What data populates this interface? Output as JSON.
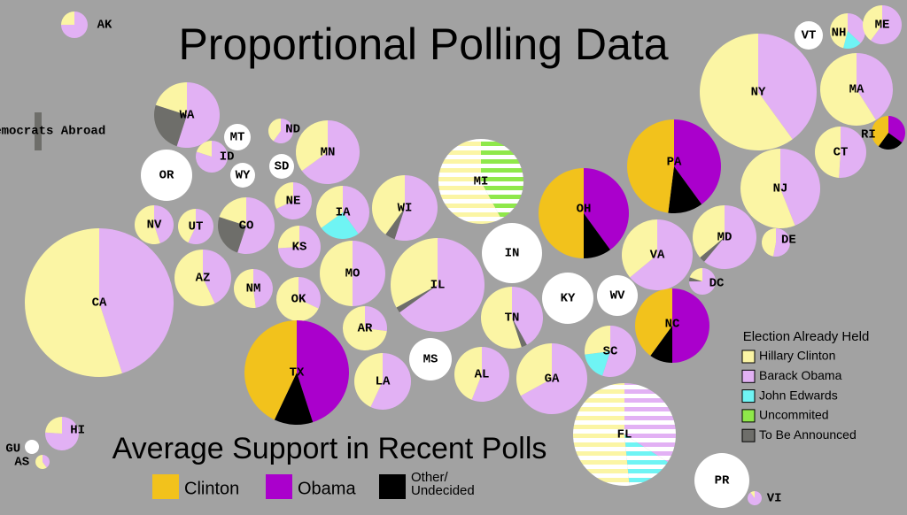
{
  "title": "Proportional Polling Data",
  "abroad_label": "Democrats Abroad",
  "held_legend": {
    "title": "Election Already Held",
    "items": [
      {
        "name": "Hillary Clinton",
        "color": "#fbf5a4"
      },
      {
        "name": "Barack Obama",
        "color": "#e2b1f4"
      },
      {
        "name": "John Edwards",
        "color": "#6ff4f4"
      },
      {
        "name": "Uncommited",
        "color": "#8fe84a"
      },
      {
        "name": "To Be Announced",
        "color": "#6e6e6a"
      }
    ]
  },
  "poll_legend": {
    "title": "Average Support in Recent Polls",
    "items": [
      {
        "name": "Clinton",
        "color": "#f2c21c"
      },
      {
        "name": "Obama",
        "color": "#aa00cc"
      },
      {
        "name": "Other/\nUndecided",
        "color": "#000000"
      }
    ]
  },
  "chart_data": {
    "type": "pie-cartogram",
    "states": [
      {
        "label": "AK",
        "segments": [
          {
            "category": "Barack Obama",
            "value": 75
          },
          {
            "category": "Hillary Clinton",
            "value": 25
          }
        ]
      },
      {
        "label": "WA",
        "segments": [
          {
            "category": "Barack Obama",
            "value": 55
          },
          {
            "category": "To Be Announced",
            "value": 25
          },
          {
            "category": "Hillary Clinton",
            "value": 20
          }
        ]
      },
      {
        "label": "MT",
        "segments": []
      },
      {
        "label": "ND",
        "segments": [
          {
            "category": "Barack Obama",
            "value": 60
          },
          {
            "category": "Hillary Clinton",
            "value": 40
          }
        ]
      },
      {
        "label": "MN",
        "segments": [
          {
            "category": "Barack Obama",
            "value": 65
          },
          {
            "category": "Hillary Clinton",
            "value": 35
          }
        ]
      },
      {
        "label": "ID",
        "segments": [
          {
            "category": "Barack Obama",
            "value": 80
          },
          {
            "category": "Hillary Clinton",
            "value": 20
          }
        ]
      },
      {
        "label": "OR",
        "segments": []
      },
      {
        "label": "WY",
        "segments": []
      },
      {
        "label": "SD",
        "segments": []
      },
      {
        "label": "NE",
        "segments": [
          {
            "category": "Barack Obama",
            "value": 68
          },
          {
            "category": "Hillary Clinton",
            "value": 32
          }
        ]
      },
      {
        "label": "IA",
        "segments": [
          {
            "category": "Barack Obama",
            "value": 40
          },
          {
            "category": "John Edwards",
            "value": 25
          },
          {
            "category": "Hillary Clinton",
            "value": 35
          }
        ]
      },
      {
        "label": "WI",
        "segments": [
          {
            "category": "Barack Obama",
            "value": 55
          },
          {
            "category": "To Be Announced",
            "value": 5
          },
          {
            "category": "Hillary Clinton",
            "value": 40
          }
        ]
      },
      {
        "label": "CO",
        "segments": [
          {
            "category": "Barack Obama",
            "value": 55
          },
          {
            "category": "To Be Announced",
            "value": 25
          },
          {
            "category": "Hillary Clinton",
            "value": 20
          }
        ]
      },
      {
        "label": "NV",
        "segments": [
          {
            "category": "Barack Obama",
            "value": 45
          },
          {
            "category": "Hillary Clinton",
            "value": 55
          }
        ]
      },
      {
        "label": "UT",
        "segments": [
          {
            "category": "Barack Obama",
            "value": 57
          },
          {
            "category": "Hillary Clinton",
            "value": 43
          }
        ]
      },
      {
        "label": "KS",
        "segments": [
          {
            "category": "Barack Obama",
            "value": 74
          },
          {
            "category": "Hillary Clinton",
            "value": 26
          }
        ]
      },
      {
        "label": "CA",
        "segments": [
          {
            "category": "Barack Obama",
            "value": 45
          },
          {
            "category": "Hillary Clinton",
            "value": 55
          }
        ]
      },
      {
        "label": "AZ",
        "segments": [
          {
            "category": "Barack Obama",
            "value": 43
          },
          {
            "category": "Hillary Clinton",
            "value": 57
          }
        ]
      },
      {
        "label": "NM",
        "segments": [
          {
            "category": "Barack Obama",
            "value": 48
          },
          {
            "category": "Hillary Clinton",
            "value": 52
          }
        ]
      },
      {
        "label": "OK",
        "segments": [
          {
            "category": "Barack Obama",
            "value": 32
          },
          {
            "category": "Hillary Clinton",
            "value": 68
          }
        ]
      },
      {
        "label": "MO",
        "segments": [
          {
            "category": "Barack Obama",
            "value": 50
          },
          {
            "category": "Hillary Clinton",
            "value": 50
          }
        ]
      },
      {
        "label": "IL",
        "segments": [
          {
            "category": "Barack Obama",
            "value": 65
          },
          {
            "category": "To Be Announced",
            "value": 2
          },
          {
            "category": "Hillary Clinton",
            "value": 33
          }
        ]
      },
      {
        "label": "AR",
        "segments": [
          {
            "category": "Barack Obama",
            "value": 27
          },
          {
            "category": "Hillary Clinton",
            "value": 73
          }
        ]
      },
      {
        "label": "TX",
        "segments": [
          {
            "category": "Obama",
            "value": 45
          },
          {
            "category": "Other/\nUndecided",
            "value": 12
          },
          {
            "category": "Clinton",
            "value": 43
          }
        ]
      },
      {
        "label": "LA",
        "segments": [
          {
            "category": "Barack Obama",
            "value": 57
          },
          {
            "category": "Hillary Clinton",
            "value": 43
          }
        ]
      },
      {
        "label": "MS",
        "segments": []
      },
      {
        "label": "AL",
        "segments": [
          {
            "category": "Barack Obama",
            "value": 56
          },
          {
            "category": "Hillary Clinton",
            "value": 44
          }
        ]
      },
      {
        "label": "TN",
        "segments": [
          {
            "category": "Barack Obama",
            "value": 42
          },
          {
            "category": "To Be Announced",
            "value": 3
          },
          {
            "category": "Hillary Clinton",
            "value": 55
          }
        ]
      },
      {
        "label": "GA",
        "segments": [
          {
            "category": "Barack Obama",
            "value": 67
          },
          {
            "category": "Hillary Clinton",
            "value": 33
          }
        ]
      },
      {
        "label": "SC",
        "segments": [
          {
            "category": "Barack Obama",
            "value": 55
          },
          {
            "category": "John Edwards",
            "value": 18
          },
          {
            "category": "Hillary Clinton",
            "value": 27
          }
        ]
      },
      {
        "label": "FL",
        "striped": true,
        "segments": [
          {
            "category": "Barack Obama",
            "value": 33
          },
          {
            "category": "John Edwards",
            "value": 14
          },
          {
            "category": "Hillary Clinton",
            "value": 50
          }
        ]
      },
      {
        "label": "IN",
        "segments": []
      },
      {
        "label": "KY",
        "segments": []
      },
      {
        "label": "WV",
        "segments": []
      },
      {
        "label": "MI",
        "striped": true,
        "segments": [
          {
            "category": "Uncommited",
            "value": 40
          },
          {
            "category": "Hillary Clinton",
            "value": 55
          }
        ]
      },
      {
        "label": "OH",
        "segments": [
          {
            "category": "Obama",
            "value": 40
          },
          {
            "category": "Other/\nUndecided",
            "value": 10
          },
          {
            "category": "Clinton",
            "value": 50
          }
        ]
      },
      {
        "label": "PA",
        "segments": [
          {
            "category": "Obama",
            "value": 40
          },
          {
            "category": "Other/\nUndecided",
            "value": 12
          },
          {
            "category": "Clinton",
            "value": 48
          }
        ]
      },
      {
        "label": "NC",
        "segments": [
          {
            "category": "Obama",
            "value": 50
          },
          {
            "category": "Other/\nUndecided",
            "value": 10
          },
          {
            "category": "Clinton",
            "value": 40
          }
        ]
      },
      {
        "label": "VA",
        "segments": [
          {
            "category": "Barack Obama",
            "value": 64
          },
          {
            "category": "Hillary Clinton",
            "value": 36
          }
        ]
      },
      {
        "label": "MD",
        "segments": [
          {
            "category": "Barack Obama",
            "value": 61
          },
          {
            "category": "To Be Announced",
            "value": 3
          },
          {
            "category": "Hillary Clinton",
            "value": 36
          }
        ]
      },
      {
        "label": "DC",
        "segments": [
          {
            "category": "Barack Obama",
            "value": 75
          },
          {
            "category": "To Be Announced",
            "value": 5
          },
          {
            "category": "Hillary Clinton",
            "value": 20
          }
        ]
      },
      {
        "label": "DE",
        "segments": [
          {
            "category": "Barack Obama",
            "value": 53
          },
          {
            "category": "Hillary Clinton",
            "value": 47
          }
        ]
      },
      {
        "label": "NJ",
        "segments": [
          {
            "category": "Barack Obama",
            "value": 44
          },
          {
            "category": "Hillary Clinton",
            "value": 56
          }
        ]
      },
      {
        "label": "NY",
        "segments": [
          {
            "category": "Barack Obama",
            "value": 40
          },
          {
            "category": "Hillary Clinton",
            "value": 60
          }
        ]
      },
      {
        "label": "CT",
        "segments": [
          {
            "category": "Barack Obama",
            "value": 51
          },
          {
            "category": "Hillary Clinton",
            "value": 49
          }
        ]
      },
      {
        "label": "MA",
        "segments": [
          {
            "category": "Barack Obama",
            "value": 41
          },
          {
            "category": "Hillary Clinton",
            "value": 59
          }
        ]
      },
      {
        "label": "RI",
        "segments": [
          {
            "category": "Obama",
            "value": 35
          },
          {
            "category": "Other/\nUndecided",
            "value": 25
          },
          {
            "category": "Clinton",
            "value": 40
          }
        ]
      },
      {
        "label": "VT",
        "segments": []
      },
      {
        "label": "NH",
        "segments": [
          {
            "category": "Barack Obama",
            "value": 37
          },
          {
            "category": "John Edwards",
            "value": 17
          },
          {
            "category": "Hillary Clinton",
            "value": 46
          }
        ]
      },
      {
        "label": "ME",
        "segments": [
          {
            "category": "Barack Obama",
            "value": 60
          },
          {
            "category": "Hillary Clinton",
            "value": 40
          }
        ]
      },
      {
        "label": "HI",
        "segments": [
          {
            "category": "Barack Obama",
            "value": 76
          },
          {
            "category": "Hillary Clinton",
            "value": 24
          }
        ]
      },
      {
        "label": "GU",
        "segments": []
      },
      {
        "label": "AS",
        "segments": [
          {
            "category": "Barack Obama",
            "value": 40
          },
          {
            "category": "Hillary Clinton",
            "value": 60
          }
        ]
      },
      {
        "label": "PR",
        "segments": []
      },
      {
        "label": "VI",
        "segments": [
          {
            "category": "Barack Obama",
            "value": 90
          },
          {
            "category": "Hillary Clinton",
            "value": 10
          }
        ]
      }
    ]
  }
}
